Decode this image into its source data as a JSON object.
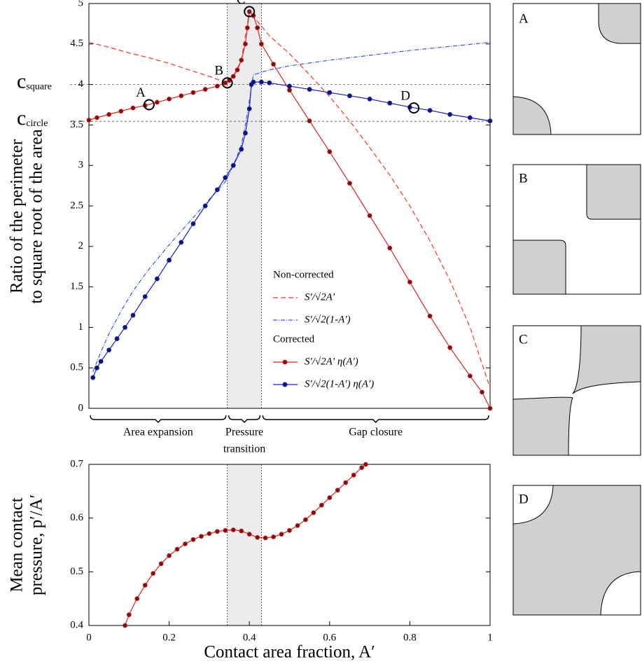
{
  "chart_data": [
    {
      "type": "line",
      "ylabel_lines": [
        "Ratio of the perimeter",
        "to square root of the area"
      ],
      "xlim": [
        0,
        1
      ],
      "ylim": [
        0,
        5
      ],
      "yticks": [
        0,
        0.5,
        1,
        1.5,
        2,
        2.5,
        3,
        3.5,
        4,
        4.5,
        5
      ],
      "shade": [
        0.345,
        0.43
      ],
      "reference_lines": [
        {
          "label": "c",
          "sub": "square",
          "value": 4.0
        },
        {
          "label": "c",
          "sub": "circle",
          "value": 3.545
        }
      ],
      "points": [
        {
          "label": "A",
          "x": 0.15,
          "y": 3.75
        },
        {
          "label": "B",
          "x": 0.345,
          "y": 4.02
        },
        {
          "label": "C",
          "x": 0.4,
          "y": 4.9
        },
        {
          "label": "D",
          "x": 0.81,
          "y": 3.71
        }
      ],
      "regions": [
        {
          "lines": [
            "Area expansion"
          ],
          "range": [
            0,
            0.345
          ]
        },
        {
          "lines": [
            "Pressure",
            "transition"
          ],
          "range": [
            0.345,
            0.43
          ]
        },
        {
          "lines": [
            "Gap closure"
          ],
          "range": [
            0.43,
            1
          ]
        }
      ],
      "legend_titles": [
        "Non-corrected",
        "Corrected"
      ],
      "series": [
        {
          "name": "S′/√2A′",
          "color": "#ff3333",
          "dash": "dashed",
          "markers": false,
          "x": [
            0,
            0.05,
            0.1,
            0.15,
            0.2,
            0.25,
            0.3,
            0.34,
            0.36,
            0.38,
            0.4,
            0.45,
            0.5,
            0.55,
            0.6,
            0.65,
            0.7,
            0.75,
            0.8,
            0.85,
            0.9,
            0.95,
            0.98,
            1.0
          ],
          "values": [
            4.52,
            4.46,
            4.39,
            4.33,
            4.26,
            4.18,
            4.1,
            4.03,
            4.1,
            4.3,
            4.9,
            4.6,
            4.38,
            4.12,
            3.85,
            3.55,
            3.22,
            2.88,
            2.5,
            2.07,
            1.58,
            1.0,
            0.55,
            0.25
          ]
        },
        {
          "name": "S′/√2(1-A′)",
          "color": "#3355ee",
          "dash": "dashdot",
          "markers": false,
          "x": [
            0.01,
            0.03,
            0.05,
            0.08,
            0.11,
            0.15,
            0.2,
            0.25,
            0.3,
            0.34,
            0.36,
            0.38,
            0.39,
            0.4,
            0.41,
            0.45,
            0.5,
            0.6,
            0.7,
            0.8,
            0.9,
            1.0
          ],
          "values": [
            0.45,
            0.7,
            0.92,
            1.2,
            1.45,
            1.72,
            2.02,
            2.3,
            2.58,
            2.8,
            3.0,
            3.25,
            3.5,
            3.8,
            4.12,
            4.18,
            4.23,
            4.3,
            4.36,
            4.42,
            4.47,
            4.52
          ]
        },
        {
          "name": "S′/√2A′ η(A′)",
          "color": "#dd2222",
          "marker_color": "#7a1010",
          "dash": "solid",
          "markers": true,
          "x": [
            0,
            0.02,
            0.05,
            0.08,
            0.11,
            0.14,
            0.17,
            0.2,
            0.23,
            0.26,
            0.29,
            0.32,
            0.34,
            0.35,
            0.36,
            0.37,
            0.38,
            0.39,
            0.395,
            0.4,
            0.41,
            0.42,
            0.43,
            0.46,
            0.5,
            0.55,
            0.6,
            0.65,
            0.7,
            0.75,
            0.8,
            0.85,
            0.9,
            0.95,
            0.98,
            1.0
          ],
          "values": [
            3.56,
            3.59,
            3.63,
            3.67,
            3.71,
            3.74,
            3.78,
            3.82,
            3.86,
            3.9,
            3.94,
            3.98,
            4.02,
            4.05,
            4.1,
            4.18,
            4.3,
            4.5,
            4.7,
            4.9,
            4.85,
            4.7,
            4.5,
            4.25,
            3.93,
            3.55,
            3.17,
            2.78,
            2.38,
            1.98,
            1.56,
            1.14,
            0.75,
            0.4,
            0.2,
            0.0
          ]
        },
        {
          "name": "S′/√2(1-A′) η(A′)",
          "color": "#1a1acc",
          "marker_color": "#0a1a6a",
          "dash": "solid",
          "markers": true,
          "x": [
            0.01,
            0.02,
            0.03,
            0.05,
            0.07,
            0.09,
            0.11,
            0.14,
            0.17,
            0.2,
            0.23,
            0.26,
            0.29,
            0.32,
            0.34,
            0.36,
            0.38,
            0.39,
            0.4,
            0.405,
            0.41,
            0.43,
            0.45,
            0.5,
            0.55,
            0.6,
            0.65,
            0.7,
            0.75,
            0.8,
            0.85,
            0.9,
            0.95,
            1.0
          ],
          "values": [
            0.38,
            0.5,
            0.58,
            0.72,
            0.86,
            1.0,
            1.15,
            1.38,
            1.6,
            1.83,
            2.05,
            2.28,
            2.5,
            2.7,
            2.85,
            3.0,
            3.2,
            3.4,
            3.7,
            4.0,
            4.03,
            4.03,
            4.02,
            3.98,
            3.94,
            3.9,
            3.86,
            3.82,
            3.77,
            3.72,
            3.68,
            3.63,
            3.59,
            3.55
          ]
        }
      ]
    },
    {
      "type": "line",
      "ylabel_lines": [
        "Mean contact",
        "pressure, p′/A′"
      ],
      "xlabel": "Contact area fraction, A′",
      "xlim": [
        0,
        1
      ],
      "ylim": [
        0.4,
        0.7
      ],
      "xticks": [
        0,
        0.2,
        0.4,
        0.6,
        0.8,
        1
      ],
      "yticks": [
        0.4,
        0.5,
        0.6,
        0.7
      ],
      "shade": [
        0.345,
        0.43
      ],
      "series": [
        {
          "color": "#dd2222",
          "marker_color": "#7a1010",
          "dash": "solid",
          "markers": true,
          "x": [
            0.09,
            0.1,
            0.12,
            0.14,
            0.16,
            0.18,
            0.2,
            0.22,
            0.24,
            0.26,
            0.28,
            0.3,
            0.32,
            0.34,
            0.36,
            0.38,
            0.4,
            0.42,
            0.44,
            0.46,
            0.48,
            0.5,
            0.52,
            0.54,
            0.56,
            0.58,
            0.6,
            0.62,
            0.64,
            0.66,
            0.68,
            0.69
          ],
          "values": [
            0.4,
            0.42,
            0.45,
            0.475,
            0.497,
            0.515,
            0.53,
            0.542,
            0.552,
            0.56,
            0.566,
            0.571,
            0.575,
            0.577,
            0.578,
            0.576,
            0.57,
            0.564,
            0.563,
            0.565,
            0.57,
            0.577,
            0.586,
            0.597,
            0.61,
            0.624,
            0.638,
            0.652,
            0.666,
            0.68,
            0.694,
            0.7
          ]
        }
      ]
    }
  ],
  "panels": [
    {
      "label": "A"
    },
    {
      "label": "B"
    },
    {
      "label": "C"
    },
    {
      "label": "D"
    }
  ]
}
